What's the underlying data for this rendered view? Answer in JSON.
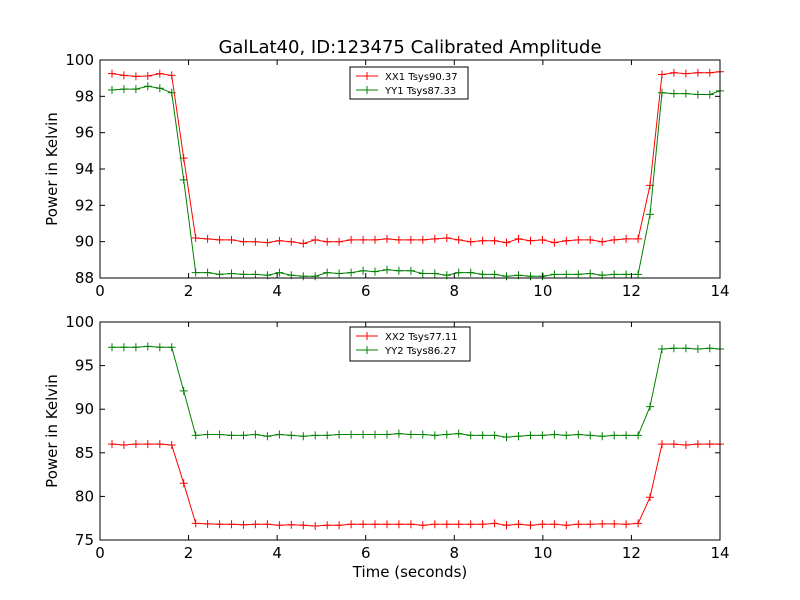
{
  "figure": {
    "title": "GalLat40, ID:123475 Calibrated Amplitude"
  },
  "chart_data": [
    {
      "type": "line",
      "title": "GalLat40, ID:123475 Calibrated Amplitude",
      "xlabel": "",
      "ylabel": "Power in Kelvin",
      "xlim": [
        0,
        14
      ],
      "ylim": [
        88,
        100
      ],
      "xticks": [
        "0",
        "2",
        "4",
        "6",
        "8",
        "10",
        "12",
        "14"
      ],
      "yticks": [
        "88",
        "90",
        "92",
        "94",
        "96",
        "98",
        "100"
      ],
      "grid": false,
      "legend_position": "top-center",
      "x": [
        0.27,
        0.54,
        0.81,
        1.08,
        1.35,
        1.62,
        1.89,
        2.16,
        2.43,
        2.7,
        2.97,
        3.24,
        3.51,
        3.78,
        4.05,
        4.32,
        4.59,
        4.86,
        5.13,
        5.4,
        5.67,
        5.94,
        6.21,
        6.48,
        6.75,
        7.02,
        7.29,
        7.56,
        7.83,
        8.1,
        8.37,
        8.64,
        8.91,
        9.18,
        9.45,
        9.72,
        9.99,
        10.26,
        10.53,
        10.8,
        11.07,
        11.34,
        11.61,
        11.88,
        12.15,
        12.42,
        12.69,
        12.96,
        13.23,
        13.5,
        13.77,
        14.0
      ],
      "series": [
        {
          "name": "XX1 Tsys90.37",
          "color": "#ff0000",
          "values": [
            99.25,
            99.15,
            99.1,
            99.12,
            99.25,
            99.15,
            94.6,
            90.2,
            90.15,
            90.1,
            90.1,
            90.0,
            90.0,
            89.95,
            90.05,
            90.0,
            89.9,
            90.1,
            90.0,
            90.0,
            90.1,
            90.1,
            90.1,
            90.15,
            90.1,
            90.1,
            90.1,
            90.15,
            90.2,
            90.1,
            90.0,
            90.05,
            90.05,
            89.95,
            90.15,
            90.05,
            90.1,
            89.95,
            90.05,
            90.1,
            90.1,
            90.0,
            90.1,
            90.15,
            90.15,
            93.1,
            99.2,
            99.3,
            99.25,
            99.3,
            99.3,
            99.35
          ]
        },
        {
          "name": "YY1 Tsys87.33",
          "color": "#008000",
          "values": [
            98.35,
            98.4,
            98.4,
            98.55,
            98.45,
            98.2,
            93.4,
            88.3,
            88.3,
            88.2,
            88.25,
            88.2,
            88.2,
            88.15,
            88.3,
            88.15,
            88.1,
            88.1,
            88.3,
            88.25,
            88.3,
            88.4,
            88.35,
            88.45,
            88.4,
            88.4,
            88.25,
            88.25,
            88.15,
            88.3,
            88.3,
            88.2,
            88.2,
            88.1,
            88.15,
            88.1,
            88.1,
            88.2,
            88.2,
            88.2,
            88.25,
            88.15,
            88.2,
            88.2,
            88.2,
            91.5,
            98.2,
            98.15,
            98.15,
            98.1,
            98.1,
            98.3
          ]
        }
      ]
    },
    {
      "type": "line",
      "title": "",
      "xlabel": "Time (seconds)",
      "ylabel": "Power in Kelvin",
      "xlim": [
        0,
        14
      ],
      "ylim": [
        75,
        100
      ],
      "xticks": [
        "0",
        "2",
        "4",
        "6",
        "8",
        "10",
        "12",
        "14"
      ],
      "yticks": [
        "75",
        "80",
        "85",
        "90",
        "95",
        "100"
      ],
      "grid": false,
      "legend_position": "top-center",
      "x": [
        0.27,
        0.54,
        0.81,
        1.08,
        1.35,
        1.62,
        1.89,
        2.16,
        2.43,
        2.7,
        2.97,
        3.24,
        3.51,
        3.78,
        4.05,
        4.32,
        4.59,
        4.86,
        5.13,
        5.4,
        5.67,
        5.94,
        6.21,
        6.48,
        6.75,
        7.02,
        7.29,
        7.56,
        7.83,
        8.1,
        8.37,
        8.64,
        8.91,
        9.18,
        9.45,
        9.72,
        9.99,
        10.26,
        10.53,
        10.8,
        11.07,
        11.34,
        11.61,
        11.88,
        12.15,
        12.42,
        12.69,
        12.96,
        13.23,
        13.5,
        13.77,
        14.0
      ],
      "series": [
        {
          "name": "XX2 Tsys77.11",
          "color": "#ff0000",
          "values": [
            86.0,
            85.9,
            86.0,
            86.0,
            86.0,
            85.9,
            81.5,
            76.9,
            76.85,
            76.8,
            76.8,
            76.75,
            76.8,
            76.8,
            76.7,
            76.75,
            76.7,
            76.6,
            76.7,
            76.7,
            76.8,
            76.8,
            76.8,
            76.8,
            76.8,
            76.8,
            76.7,
            76.8,
            76.8,
            76.8,
            76.8,
            76.8,
            76.9,
            76.7,
            76.8,
            76.7,
            76.8,
            76.8,
            76.7,
            76.8,
            76.8,
            76.85,
            76.85,
            76.8,
            76.9,
            79.9,
            86.0,
            86.0,
            85.9,
            86.0,
            86.0,
            86.0
          ]
        },
        {
          "name": "YY2 Tsys86.27",
          "color": "#008000",
          "values": [
            97.1,
            97.1,
            97.1,
            97.2,
            97.1,
            97.1,
            92.1,
            87.0,
            87.1,
            87.1,
            87.0,
            87.0,
            87.1,
            86.9,
            87.1,
            87.0,
            86.9,
            87.0,
            87.0,
            87.1,
            87.1,
            87.1,
            87.1,
            87.1,
            87.2,
            87.1,
            87.1,
            87.0,
            87.1,
            87.2,
            87.0,
            87.0,
            87.0,
            86.8,
            86.9,
            87.0,
            87.0,
            87.1,
            87.0,
            87.1,
            87.0,
            86.9,
            87.0,
            87.0,
            87.0,
            90.3,
            96.9,
            97.0,
            97.0,
            96.9,
            97.0,
            96.9
          ]
        }
      ]
    }
  ]
}
